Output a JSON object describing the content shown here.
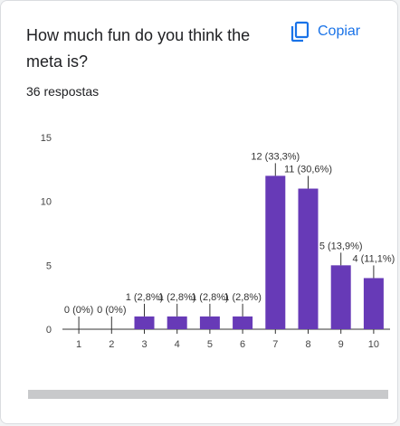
{
  "question": {
    "title": "How much fun do you think the meta is?",
    "copy_label": "Copiar",
    "copy_icon": "copy-icon",
    "response_count": "36 respostas",
    "accent_color": "#1a73e8"
  },
  "chart_data": {
    "type": "bar",
    "categories": [
      "1",
      "2",
      "3",
      "4",
      "5",
      "6",
      "7",
      "8",
      "9",
      "10"
    ],
    "values": [
      0,
      0,
      1,
      1,
      1,
      1,
      12,
      11,
      5,
      4
    ],
    "data_labels": [
      "0 (0%)",
      "0 (0%)",
      "1 (2,8%)",
      "1 (2,8%)",
      "1 (2,8%)",
      "1 (2,8%)",
      "12 (33,3%)",
      "11 (30,6%)",
      "5 (13,9%)",
      "4 (11,1%)"
    ],
    "ylim": [
      0,
      15
    ],
    "yticks": [
      0,
      5,
      10,
      15
    ],
    "bar_color": "#673ab7",
    "grid": false,
    "legend": "none"
  }
}
